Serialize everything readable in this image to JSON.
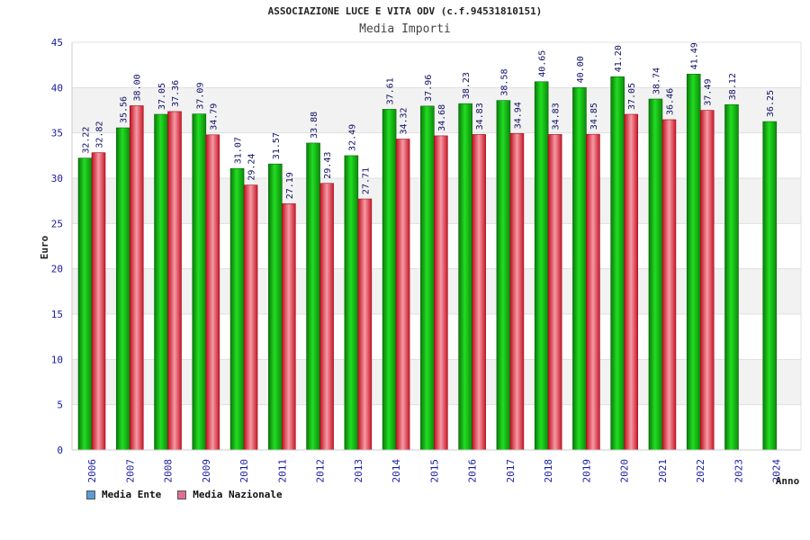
{
  "chart_data": {
    "type": "bar",
    "title": "ASSOCIAZIONE LUCE E VITA ODV (c.f.94531810151)",
    "subtitle": "Media Importi",
    "xlabel": "Anno",
    "ylabel": "Euro",
    "ylim": [
      0,
      45
    ],
    "yticks": [
      "0",
      "5",
      "10",
      "15",
      "20",
      "25",
      "30",
      "35",
      "40",
      "45"
    ],
    "grid": true,
    "legend_position": "bottom-left",
    "categories": [
      "2006",
      "2007",
      "2008",
      "2009",
      "2010",
      "2011",
      "2012",
      "2013",
      "2014",
      "2015",
      "2016",
      "2017",
      "2018",
      "2019",
      "2020",
      "2021",
      "2022",
      "2023",
      "2024"
    ],
    "series": [
      {
        "name": "Media Ente",
        "color": "#11aa11",
        "swatch_color": "#5b9bd5",
        "values": [
          32.22,
          35.56,
          37.05,
          37.09,
          31.07,
          31.57,
          33.88,
          32.49,
          37.61,
          37.96,
          38.23,
          38.58,
          40.65,
          40.0,
          41.2,
          38.74,
          41.49,
          38.12,
          36.25
        ],
        "labels": [
          "32.22",
          "35.56",
          "37.05",
          "37.09",
          "31.07",
          "31.57",
          "33.88",
          "32.49",
          "37.61",
          "37.96",
          "38.23",
          "38.58",
          "40.65",
          "40.00",
          "41.20",
          "38.74",
          "41.49",
          "38.12",
          "36.25"
        ]
      },
      {
        "name": "Media Nazionale",
        "color": "#e02030",
        "swatch_color": "#e07090",
        "values": [
          32.82,
          38.0,
          37.36,
          34.79,
          29.24,
          27.19,
          29.43,
          27.71,
          34.32,
          34.68,
          34.83,
          34.94,
          34.83,
          34.85,
          37.05,
          36.46,
          37.49,
          null,
          null
        ],
        "labels": [
          "32.82",
          "38.00",
          "37.36",
          "34.79",
          "29.24",
          "27.19",
          "29.43",
          "27.71",
          "34.32",
          "34.68",
          "34.83",
          "34.94",
          "34.83",
          "34.85",
          "37.05",
          "36.46",
          "37.49",
          "",
          ""
        ]
      }
    ]
  }
}
